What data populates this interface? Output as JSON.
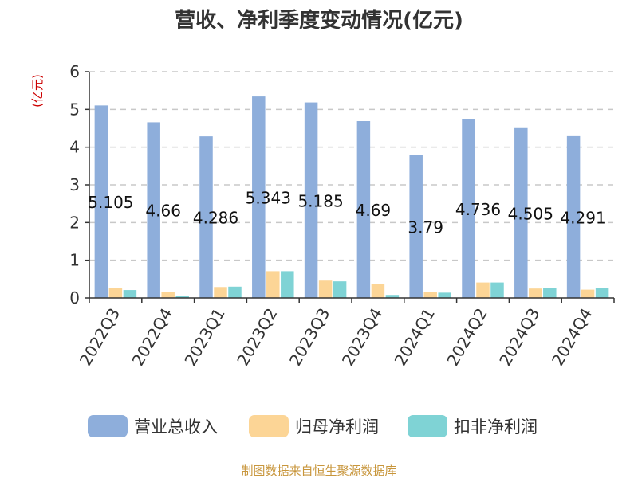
{
  "chart_data": {
    "type": "bar",
    "title": "营收、净利季度变动情况(亿元)",
    "unit_label": "(亿元)",
    "categories": [
      "2022Q3",
      "2022Q4",
      "2023Q1",
      "2023Q2",
      "2023Q3",
      "2023Q4",
      "2024Q1",
      "2024Q2",
      "2024Q3",
      "2024Q4"
    ],
    "series": [
      {
        "name": "营业总收入",
        "color": "#8eaedb",
        "values": [
          5.105,
          4.66,
          4.286,
          5.343,
          5.185,
          4.69,
          3.79,
          4.736,
          4.505,
          4.291
        ],
        "value_labels": [
          "5.105",
          "4.66",
          "4.286",
          "5.343",
          "5.185",
          "4.69",
          "3.79",
          "4.736",
          "4.505",
          "4.291"
        ]
      },
      {
        "name": "归母净利润",
        "color": "#fcd596",
        "values": [
          0.27,
          0.15,
          0.29,
          0.71,
          0.46,
          0.38,
          0.16,
          0.41,
          0.25,
          0.22
        ]
      },
      {
        "name": "扣非净利润",
        "color": "#7fd3d5",
        "values": [
          0.21,
          0.05,
          0.3,
          0.71,
          0.44,
          0.08,
          0.14,
          0.41,
          0.27,
          0.26
        ]
      }
    ],
    "y_ticks": [
      "0",
      "1",
      "2",
      "3",
      "4",
      "5",
      "6"
    ],
    "ylim": [
      0,
      6
    ],
    "grid": true,
    "legend_position": "bottom",
    "source": "制图数据来自恒生聚源数据库"
  }
}
